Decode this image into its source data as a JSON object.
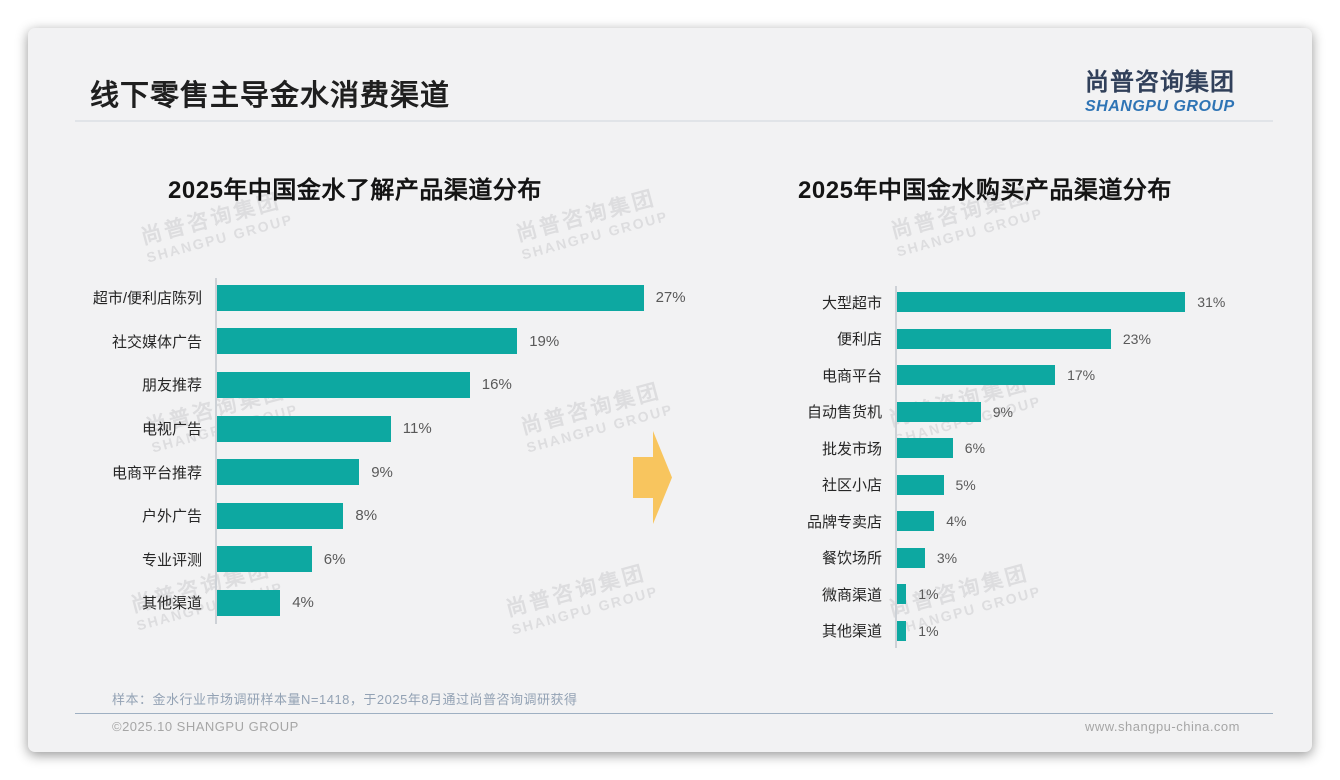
{
  "slide": {
    "title": "线下零售主导金水消费渠道",
    "logo": {
      "cn": "尚普咨询集团",
      "en": "SHANGPU GROUP"
    },
    "watermark": {
      "cn": "尚普咨询集团",
      "en": "SHANGPU GROUP"
    },
    "footnote": "样本：金水行业市场调研样本量N=1418，于2025年8月通过尚普咨询调研获得",
    "footer_left": "©2025.10 SHANGPU GROUP",
    "footer_right": "www.shangpu-china.com"
  },
  "colors": {
    "bar": "#0da8a1",
    "arrow": "#f8c55e",
    "logo_blue": "#2e74b5"
  },
  "chart_data": [
    {
      "type": "bar",
      "orientation": "horizontal",
      "title": "2025年中国金水了解产品渠道分布",
      "categories": [
        "超市/便利店陈列",
        "社交媒体广告",
        "朋友推荐",
        "电视广告",
        "电商平台推荐",
        "户外广告",
        "专业评测",
        "其他渠道"
      ],
      "values": [
        27,
        19,
        16,
        11,
        9,
        8,
        6,
        4
      ],
      "unit": "%",
      "xlim": [
        0,
        30
      ],
      "axis_labels_visible": false,
      "grid": false,
      "legend": false,
      "value_labels": true
    },
    {
      "type": "bar",
      "orientation": "horizontal",
      "title": "2025年中国金水购买产品渠道分布",
      "categories": [
        "大型超市",
        "便利店",
        "电商平台",
        "自动售货机",
        "批发市场",
        "社区小店",
        "品牌专卖店",
        "餐饮场所",
        "微商渠道",
        "其他渠道"
      ],
      "values": [
        31,
        23,
        17,
        9,
        6,
        5,
        4,
        3,
        1,
        1
      ],
      "unit": "%",
      "xlim": [
        0,
        35
      ],
      "axis_labels_visible": false,
      "grid": false,
      "legend": false,
      "value_labels": true
    }
  ]
}
